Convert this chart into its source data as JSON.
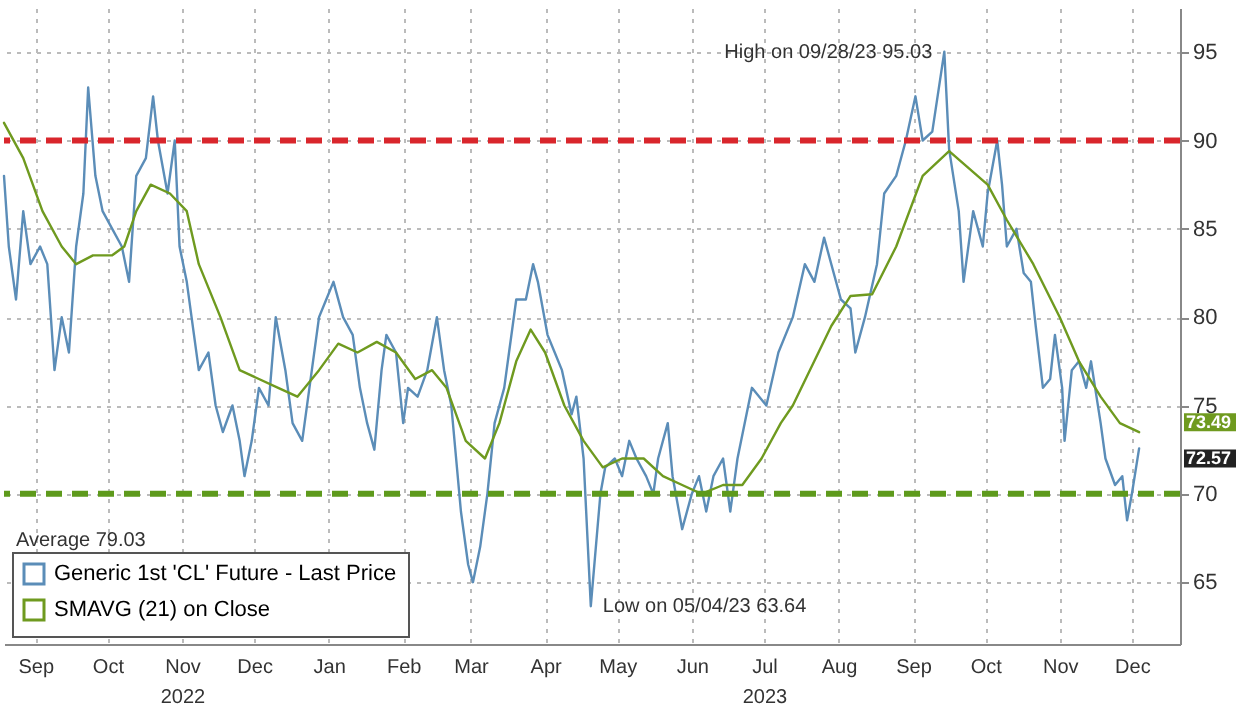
{
  "chart_data": {
    "type": "line",
    "xlim": [
      "2022-09-02",
      "2024-01-04"
    ],
    "xticks": [
      {
        "value": "2022-09-15",
        "label": "Sep"
      },
      {
        "value": "2022-10-15",
        "label": "Oct"
      },
      {
        "value": "2022-11-15",
        "label": "Nov\n2022"
      },
      {
        "value": "2022-12-15",
        "label": "Dec"
      },
      {
        "value": "2023-01-15",
        "label": "Jan"
      },
      {
        "value": "2023-02-15",
        "label": "Feb"
      },
      {
        "value": "2023-03-15",
        "label": "Mar"
      },
      {
        "value": "2023-04-15",
        "label": "Apr"
      },
      {
        "value": "2023-05-15",
        "label": "May"
      },
      {
        "value": "2023-06-15",
        "label": "Jun"
      },
      {
        "value": "2023-07-15",
        "label": "Jul\n2023"
      },
      {
        "value": "2023-08-15",
        "label": "Aug"
      },
      {
        "value": "2023-09-15",
        "label": "Sep"
      },
      {
        "value": "2023-10-15",
        "label": "Oct"
      },
      {
        "value": "2023-11-15",
        "label": "Nov"
      },
      {
        "value": "2023-12-15",
        "label": "Dec"
      }
    ],
    "ylim": [
      61.5,
      97.5
    ],
    "yticks": [
      65,
      70,
      75,
      80,
      85,
      90,
      95
    ],
    "grid": true,
    "legend": "bottom left",
    "series": [
      {
        "name": "Generic 1st 'CL' Future - Last Price",
        "color": "#5b8db8",
        "x": [
          "2022-09-02",
          "2022-09-04",
          "2022-09-07",
          "2022-09-10",
          "2022-09-13",
          "2022-09-17",
          "2022-09-20",
          "2022-09-23",
          "2022-09-26",
          "2022-09-29",
          "2022-10-02",
          "2022-10-05",
          "2022-10-07",
          "2022-10-10",
          "2022-10-13",
          "2022-10-17",
          "2022-10-21",
          "2022-10-24",
          "2022-10-27",
          "2022-10-31",
          "2022-11-03",
          "2022-11-05",
          "2022-11-09",
          "2022-11-12",
          "2022-11-14",
          "2022-11-17",
          "2022-11-20",
          "2022-11-22",
          "2022-11-26",
          "2022-11-29",
          "2022-12-02",
          "2022-12-06",
          "2022-12-09",
          "2022-12-11",
          "2022-12-14",
          "2022-12-17",
          "2022-12-21",
          "2022-12-24",
          "2022-12-28",
          "2022-12-31",
          "2023-01-04",
          "2023-01-07",
          "2023-01-11",
          "2023-01-14",
          "2023-01-17",
          "2023-01-21",
          "2023-01-25",
          "2023-01-28",
          "2023-01-31",
          "2023-02-03",
          "2023-02-06",
          "2023-02-08",
          "2023-02-12",
          "2023-02-15",
          "2023-02-17",
          "2023-02-21",
          "2023-02-25",
          "2023-03-01",
          "2023-03-04",
          "2023-03-07",
          "2023-03-11",
          "2023-03-14",
          "2023-03-16",
          "2023-03-19",
          "2023-03-22",
          "2023-03-25",
          "2023-03-29",
          "2023-03-31",
          "2023-04-03",
          "2023-04-07",
          "2023-04-10",
          "2023-04-12",
          "2023-04-16",
          "2023-04-19",
          "2023-04-22",
          "2023-04-26",
          "2023-04-28",
          "2023-05-01",
          "2023-05-04",
          "2023-05-08",
          "2023-05-10",
          "2023-05-14",
          "2023-05-17",
          "2023-05-20",
          "2023-05-23",
          "2023-05-27",
          "2023-05-30",
          "2023-06-01",
          "2023-06-05",
          "2023-06-07",
          "2023-06-11",
          "2023-06-15",
          "2023-06-18",
          "2023-06-21",
          "2023-06-24",
          "2023-06-28",
          "2023-07-01",
          "2023-07-04",
          "2023-07-10",
          "2023-07-16",
          "2023-07-21",
          "2023-07-27",
          "2023-08-01",
          "2023-08-05",
          "2023-08-09",
          "2023-08-16",
          "2023-08-20",
          "2023-08-22",
          "2023-08-26",
          "2023-08-31",
          "2023-09-03",
          "2023-09-08",
          "2023-09-12",
          "2023-09-16",
          "2023-09-19",
          "2023-09-23",
          "2023-09-28",
          "2023-09-30",
          "2023-10-04",
          "2023-10-06",
          "2023-10-10",
          "2023-10-14",
          "2023-10-16",
          "2023-10-20",
          "2023-10-22",
          "2023-10-24",
          "2023-10-28",
          "2023-10-31",
          "2023-11-03",
          "2023-11-05",
          "2023-11-08",
          "2023-11-11",
          "2023-11-13",
          "2023-11-16",
          "2023-11-17",
          "2023-11-20",
          "2023-11-23",
          "2023-11-26",
          "2023-11-28",
          "2023-12-02",
          "2023-12-04",
          "2023-12-08",
          "2023-12-11",
          "2023-12-13",
          "2023-12-15",
          "2023-12-18"
        ],
        "values": [
          88,
          84,
          81,
          86,
          83,
          84,
          83,
          77,
          80,
          78,
          84,
          87,
          93,
          88,
          86,
          85,
          84,
          82,
          88,
          89,
          92.5,
          90,
          87,
          90,
          84,
          82,
          79,
          77,
          78,
          75,
          73.5,
          75,
          73,
          71,
          73,
          76,
          75,
          80,
          77,
          74,
          73,
          76,
          80,
          81,
          82,
          80,
          79,
          76,
          74,
          72.5,
          77,
          79,
          78,
          74,
          76,
          75.5,
          77,
          80,
          77,
          75,
          69,
          66,
          65,
          67,
          70,
          74,
          76,
          78,
          81,
          81,
          83,
          82,
          79,
          78,
          77,
          74.5,
          75.5,
          72,
          63.64,
          70,
          71.5,
          72,
          71,
          73,
          72,
          71,
          70,
          72,
          74,
          71,
          68,
          70,
          71,
          69,
          71,
          72,
          69,
          72,
          76,
          75,
          78,
          80,
          83,
          82,
          84.5,
          81,
          80.5,
          78,
          80,
          83,
          87,
          88,
          90,
          92.5,
          90,
          90.5,
          95.03,
          89.5,
          86,
          82,
          86,
          84,
          87,
          90,
          87.5,
          84,
          85,
          82.5,
          82,
          79.5,
          76,
          76.5,
          79,
          76,
          73,
          77,
          77.5,
          76,
          77.5,
          74,
          72,
          70.5,
          71,
          68.5,
          70,
          72.57
        ]
      },
      {
        "name": "SMAVG (21)  on Close",
        "color": "#6f9a1f",
        "x": [
          "2022-09-02",
          "2022-09-10",
          "2022-09-18",
          "2022-09-26",
          "2022-10-02",
          "2022-10-09",
          "2022-10-17",
          "2022-10-22",
          "2022-10-27",
          "2022-11-02",
          "2022-11-10",
          "2022-11-17",
          "2022-11-22",
          "2022-12-01",
          "2022-12-09",
          "2022-12-17",
          "2022-12-25",
          "2023-01-02",
          "2023-01-11",
          "2023-01-19",
          "2023-01-27",
          "2023-02-04",
          "2023-02-12",
          "2023-02-20",
          "2023-02-27",
          "2023-03-05",
          "2023-03-13",
          "2023-03-21",
          "2023-03-27",
          "2023-04-03",
          "2023-04-09",
          "2023-04-15",
          "2023-04-23",
          "2023-05-01",
          "2023-05-09",
          "2023-05-17",
          "2023-05-26",
          "2023-06-03",
          "2023-06-11",
          "2023-06-19",
          "2023-06-28",
          "2023-07-06",
          "2023-07-14",
          "2023-07-22",
          "2023-07-27",
          "2023-08-12",
          "2023-08-20",
          "2023-08-29",
          "2023-09-08",
          "2023-09-19",
          "2023-09-30",
          "2023-10-16",
          "2023-10-24",
          "2023-11-04",
          "2023-11-15",
          "2023-11-23",
          "2023-12-02",
          "2023-12-10",
          "2023-12-18"
        ],
        "values": [
          91,
          89,
          86,
          84,
          83,
          83.5,
          83.5,
          84,
          86,
          87.5,
          87,
          86,
          83,
          80,
          77,
          76.5,
          76,
          75.5,
          77,
          78.5,
          78,
          78.6,
          78,
          76.5,
          77,
          76,
          73,
          72,
          74,
          77.5,
          79.3,
          78,
          75,
          73,
          71.5,
          72,
          72,
          71,
          70.5,
          70,
          70.5,
          70.5,
          72,
          74,
          75,
          79.5,
          81.2,
          81.3,
          84,
          88,
          89.4,
          87.5,
          85.5,
          83,
          80,
          77.5,
          75.5,
          74,
          73.49
        ]
      }
    ],
    "ref_lines": [
      {
        "axis": "y",
        "value": 90,
        "color": "#d9262c",
        "line_style": "dashed"
      },
      {
        "axis": "y",
        "value": 70,
        "color": "#5e9a1c",
        "line_style": "dashed"
      }
    ],
    "annotations": [
      {
        "text": "High on 09/28/23 95.03",
        "x": "2023-09-28",
        "y": 95.03
      },
      {
        "text": "Low on 05/04/23 63.64",
        "x": "2023-05-04",
        "y": 63.64
      },
      "Average 79.03",
      {
        "text": "73.49",
        "x": "2023-12-18",
        "y": 73.49
      },
      {
        "text": "72.57",
        "x": "2023-12-18",
        "y": 72.57
      }
    ]
  }
}
